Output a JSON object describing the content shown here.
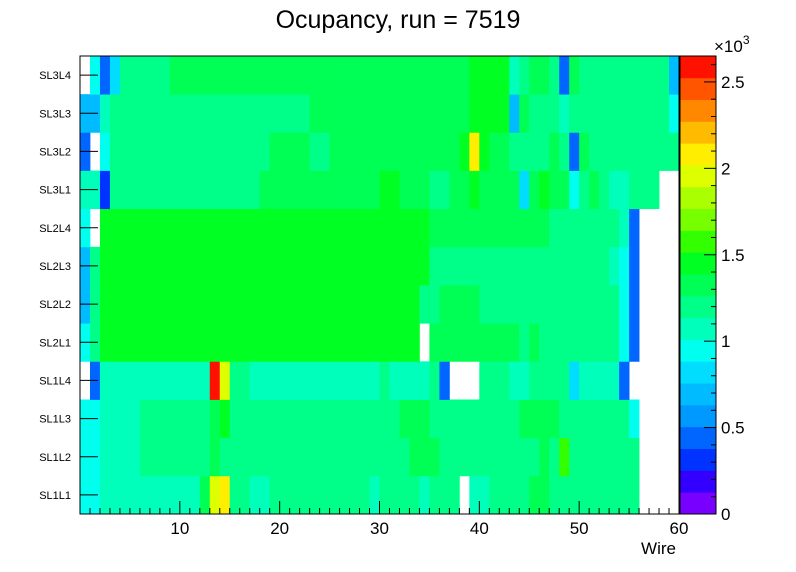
{
  "chart_data": {
    "type": "heatmap",
    "title": "Ocupancy, run = 7519",
    "xlabel": "Wire",
    "xlim": [
      0,
      60
    ],
    "x_ticks": [
      "10",
      "20",
      "30",
      "40",
      "50",
      "60"
    ],
    "y_categories": [
      "SL1L1",
      "SL1L2",
      "SL1L3",
      "SL1L4",
      "SL2L1",
      "SL2L2",
      "SL2L3",
      "SL2L4",
      "SL3L1",
      "SL3L2",
      "SL3L3",
      "SL3L4"
    ],
    "z_range": [
      0,
      2650
    ],
    "z_multiplier_label": "×10",
    "z_multiplier_exp": "3",
    "z_ticks": [
      "0",
      "0.5",
      "1",
      "1.5",
      "2",
      "2.5"
    ],
    "palette": [
      "#7700ff",
      "#3300ff",
      "#0033ff",
      "#0066ff",
      "#0099ff",
      "#00bbff",
      "#00ddff",
      "#00ffee",
      "#00ffbb",
      "#00ff88",
      "#00ff55",
      "#00ff22",
      "#33ff00",
      "#77ff00",
      "#aaff00",
      "#ddff00",
      "#ffee00",
      "#ffbb00",
      "#ff8800",
      "#ff5500",
      "#ff1100"
    ],
    "values": [
      [
        1000,
        1000,
        1100,
        1100,
        1100,
        1100,
        1100,
        1100,
        1100,
        1100,
        1100,
        1100,
        1300,
        1950,
        2100,
        1250,
        1150,
        1100,
        1100,
        1150,
        1250,
        1250,
        1250,
        1250,
        1200,
        1250,
        1250,
        1250,
        1250,
        1100,
        1200,
        1200,
        1200,
        1200,
        1100,
        1150,
        1150,
        1200,
        0,
        1100,
        1100,
        1150,
        1250,
        1250,
        1250,
        1300,
        1300,
        1150,
        1150,
        1150,
        1150,
        1150,
        1150,
        1150,
        1150,
        1150,
        0,
        0,
        0,
        0
      ],
      [
        1000,
        1000,
        1100,
        1100,
        1100,
        1100,
        1200,
        1200,
        1200,
        1200,
        1200,
        1200,
        1200,
        1300,
        1200,
        1150,
        1150,
        1200,
        1200,
        1250,
        1250,
        1250,
        1250,
        1250,
        1250,
        1250,
        1250,
        1250,
        1250,
        1250,
        1250,
        1250,
        1250,
        1300,
        1300,
        1300,
        1250,
        1250,
        1200,
        1200,
        1200,
        1150,
        1150,
        1150,
        1150,
        1150,
        1300,
        1200,
        1550,
        1200,
        1200,
        1200,
        1150,
        1150,
        1150,
        1150,
        0,
        0,
        0,
        0
      ],
      [
        1000,
        1000,
        1100,
        1100,
        1100,
        1100,
        1200,
        1200,
        1200,
        1200,
        1200,
        1200,
        1200,
        1300,
        1450,
        1150,
        1200,
        1200,
        1200,
        1200,
        1250,
        1250,
        1250,
        1250,
        1250,
        1250,
        1250,
        1250,
        1250,
        1250,
        1250,
        1250,
        1300,
        1300,
        1350,
        1250,
        1250,
        1250,
        1250,
        1200,
        1200,
        1200,
        1200,
        1250,
        1300,
        1300,
        1350,
        1300,
        1200,
        1200,
        1200,
        1150,
        1200,
        1200,
        1150,
        950,
        0,
        0,
        0,
        0
      ],
      [
        0,
        450,
        1050,
        1050,
        1050,
        1050,
        1100,
        1100,
        1100,
        1100,
        1100,
        1100,
        1100,
        2650,
        1900,
        1250,
        1150,
        1100,
        1100,
        1100,
        1100,
        1100,
        1100,
        1100,
        1100,
        1100,
        1100,
        1100,
        1100,
        1100,
        1200,
        1100,
        1100,
        1100,
        1100,
        1150,
        500,
        0,
        0,
        0,
        1150,
        1150,
        1150,
        1100,
        1050,
        1150,
        1200,
        1150,
        1150,
        850,
        1050,
        1050,
        1050,
        1050,
        450,
        0,
        0,
        0,
        0,
        0
      ],
      [
        1000,
        1150,
        1400,
        1400,
        1450,
        1400,
        1500,
        1500,
        1500,
        1500,
        1500,
        1500,
        1500,
        1500,
        1500,
        1500,
        1500,
        1450,
        1450,
        1450,
        1450,
        1450,
        1450,
        1450,
        1450,
        1450,
        1450,
        1450,
        1450,
        1450,
        1450,
        1450,
        1450,
        1450,
        0,
        1300,
        1300,
        1300,
        1300,
        1300,
        1300,
        1300,
        1300,
        1300,
        1250,
        1300,
        1250,
        1250,
        1200,
        1200,
        1200,
        1200,
        1200,
        1200,
        1000,
        450,
        0,
        0,
        0,
        0
      ],
      [
        700,
        1150,
        1400,
        1400,
        1400,
        1400,
        1450,
        1450,
        1450,
        1450,
        1450,
        1450,
        1450,
        1450,
        1450,
        1450,
        1450,
        1450,
        1450,
        1450,
        1450,
        1450,
        1450,
        1450,
        1450,
        1450,
        1450,
        1450,
        1450,
        1450,
        1450,
        1450,
        1450,
        1450,
        1200,
        1200,
        1300,
        1300,
        1300,
        1300,
        1250,
        1250,
        1250,
        1250,
        1250,
        1250,
        1250,
        1200,
        1200,
        1200,
        1200,
        1200,
        1200,
        1200,
        900,
        450,
        0,
        0,
        0,
        0
      ],
      [
        700,
        1150,
        1450,
        1450,
        1450,
        1450,
        1450,
        1450,
        1450,
        1450,
        1500,
        1500,
        1500,
        1500,
        1500,
        1500,
        1500,
        1450,
        1450,
        1450,
        1450,
        1450,
        1450,
        1450,
        1450,
        1450,
        1450,
        1450,
        1450,
        1450,
        1450,
        1450,
        1450,
        1450,
        1400,
        1250,
        1250,
        1250,
        1250,
        1250,
        1250,
        1250,
        1250,
        1250,
        1250,
        1250,
        1250,
        1200,
        1200,
        1200,
        1200,
        1200,
        1150,
        1100,
        900,
        450,
        0,
        0,
        0,
        0
      ],
      [
        1000,
        0,
        1450,
        1450,
        1450,
        1450,
        1450,
        1450,
        1450,
        1450,
        1500,
        1500,
        1500,
        1500,
        1450,
        1450,
        1450,
        1450,
        1450,
        1450,
        1450,
        1450,
        1450,
        1450,
        1450,
        1450,
        1450,
        1450,
        1450,
        1450,
        1450,
        1450,
        1450,
        1450,
        1400,
        1350,
        1350,
        1350,
        1350,
        1300,
        1300,
        1300,
        1300,
        1300,
        1300,
        1300,
        1300,
        1250,
        1250,
        1250,
        1250,
        1200,
        1200,
        1200,
        1050,
        450,
        0,
        0,
        0,
        0
      ],
      [
        1050,
        1050,
        350,
        1200,
        1150,
        1150,
        1150,
        1150,
        1150,
        1150,
        1200,
        1200,
        1200,
        1200,
        1250,
        1250,
        1250,
        1250,
        1300,
        1300,
        1300,
        1300,
        1300,
        1300,
        1300,
        1300,
        1300,
        1300,
        1300,
        1300,
        1450,
        1450,
        1300,
        1300,
        1300,
        1250,
        1250,
        1300,
        1300,
        1450,
        1350,
        1350,
        1350,
        1350,
        850,
        1300,
        1450,
        1350,
        1300,
        950,
        1200,
        1300,
        1200,
        1100,
        1100,
        1150,
        1150,
        1150,
        0,
        0
      ],
      [
        500,
        0,
        900,
        1150,
        1150,
        1150,
        1150,
        1200,
        1200,
        1200,
        1200,
        1200,
        1200,
        1250,
        1250,
        1250,
        1250,
        1250,
        1250,
        1300,
        1300,
        1300,
        1300,
        1250,
        1250,
        1300,
        1300,
        1300,
        1300,
        1300,
        1300,
        1300,
        1300,
        1300,
        1300,
        1300,
        1300,
        1300,
        1450,
        2100,
        1400,
        1350,
        1350,
        1200,
        1200,
        1250,
        1250,
        1350,
        1250,
        500,
        1350,
        1250,
        1250,
        1250,
        1250,
        1250,
        1250,
        1250,
        1250,
        1250
      ],
      [
        700,
        700,
        1050,
        1150,
        1150,
        1150,
        1150,
        1150,
        1150,
        1150,
        1200,
        1200,
        1200,
        1200,
        1250,
        1250,
        1250,
        1250,
        1250,
        1250,
        1250,
        1250,
        1250,
        1300,
        1300,
        1300,
        1300,
        1300,
        1300,
        1300,
        1300,
        1300,
        1300,
        1300,
        1350,
        1350,
        1300,
        1300,
        1300,
        1450,
        1400,
        1400,
        1400,
        700,
        1300,
        1200,
        1200,
        1200,
        1050,
        1200,
        1200,
        1200,
        1200,
        1200,
        1200,
        1200,
        1200,
        1200,
        1200,
        1000
      ],
      [
        0,
        1000,
        400,
        800,
        1150,
        1150,
        1150,
        1150,
        1150,
        1300,
        1300,
        1300,
        1300,
        1300,
        1300,
        1300,
        1300,
        1350,
        1350,
        1350,
        1350,
        1350,
        1350,
        1350,
        1350,
        1350,
        1350,
        1350,
        1350,
        1350,
        1350,
        1350,
        1350,
        1350,
        1350,
        1350,
        1350,
        1300,
        1300,
        1450,
        1450,
        1450,
        1450,
        1050,
        1200,
        1350,
        1350,
        1200,
        400,
        1300,
        1200,
        1200,
        1200,
        1200,
        1200,
        1200,
        1200,
        1200,
        1200,
        700
      ]
    ]
  }
}
